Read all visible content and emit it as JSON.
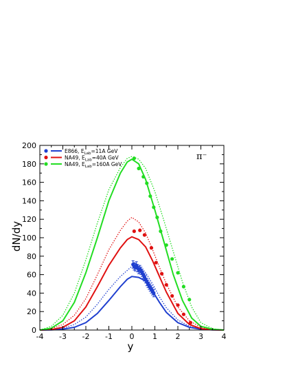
{
  "chart_data": {
    "type": "line",
    "xlabel": "y",
    "ylabel": "dN/dy",
    "annotation": "π⁻",
    "xlim": [
      -4,
      4
    ],
    "ylim": [
      0,
      200
    ],
    "xticks": [
      -4,
      -3,
      -2,
      -1,
      0,
      1,
      2,
      3,
      4
    ],
    "yticks": [
      0,
      20,
      40,
      60,
      80,
      100,
      120,
      140,
      160,
      180,
      200
    ],
    "grid": false,
    "legend_position": "top-left",
    "legend": [
      {
        "label_main": "E866, E",
        "label_sub": "Lab",
        "label_tail": "=11A GeV",
        "color": "#1f3fcf"
      },
      {
        "label_main": "NA49, E",
        "label_sub": "Lab",
        "label_tail": "=40A GeV",
        "color": "#e01010"
      },
      {
        "label_main": "NA49, E",
        "label_sub": "Lab",
        "label_tail": "=160A GeV",
        "color": "#22dd22"
      }
    ],
    "series": [
      {
        "key": "E866-11A",
        "color": "#1f3fcf",
        "solid": {
          "x": [
            -4.0,
            -3.5,
            -3.0,
            -2.5,
            -2.0,
            -1.5,
            -1.0,
            -0.5,
            -0.2,
            0.0,
            0.3,
            0.6,
            0.9,
            1.2,
            1.5,
            2.0,
            2.5,
            3.0,
            3.5,
            4.0
          ],
          "y": [
            0,
            0.2,
            1,
            3,
            8,
            18,
            32,
            47,
            55,
            58,
            57,
            53,
            42,
            30,
            19,
            8,
            3,
            1,
            0.2,
            0
          ]
        },
        "dotted": {
          "x": [
            -4.0,
            -3.5,
            -3.0,
            -2.5,
            -2.0,
            -1.5,
            -1.0,
            -0.5,
            0.0,
            0.3,
            0.6,
            0.9,
            1.2,
            1.5,
            2.0,
            2.5,
            3.0,
            3.5,
            4.0
          ],
          "y": [
            0,
            0.5,
            2,
            6,
            14,
            28,
            44,
            58,
            69,
            68,
            62,
            50,
            36,
            24,
            11,
            4,
            1,
            0.3,
            0
          ]
        },
        "points": {
          "x": [
            0.05,
            0.1,
            0.15,
            0.2,
            0.25,
            0.3,
            0.35,
            0.4,
            0.45,
            0.5,
            0.55,
            0.6,
            0.65,
            0.7,
            0.75,
            0.8,
            0.85,
            0.9,
            0.95
          ],
          "y": [
            71,
            69,
            68,
            70,
            67,
            65,
            66,
            64,
            62,
            60,
            57,
            55,
            52,
            50,
            48,
            46,
            44,
            42,
            40
          ],
          "err": [
            4,
            4,
            4,
            4,
            4,
            4,
            4,
            4,
            4,
            4,
            4,
            4,
            4,
            4,
            4,
            4,
            4,
            4,
            4
          ]
        }
      },
      {
        "key": "NA49-40A",
        "color": "#e01010",
        "solid": {
          "x": [
            -4.0,
            -3.5,
            -3.0,
            -2.5,
            -2.0,
            -1.5,
            -1.0,
            -0.5,
            -0.2,
            0.0,
            0.3,
            0.6,
            0.9,
            1.2,
            1.5,
            2.0,
            2.5,
            3.0,
            3.5,
            4.0
          ],
          "y": [
            0,
            0.5,
            3,
            10,
            25,
            47,
            70,
            89,
            98,
            101,
            98,
            90,
            75,
            58,
            41,
            18,
            6,
            1.5,
            0.3,
            0
          ]
        },
        "dotted": {
          "x": [
            -4.0,
            -3.5,
            -3.0,
            -2.5,
            -2.0,
            -1.5,
            -1.0,
            -0.5,
            -0.2,
            0.0,
            0.3,
            0.6,
            0.9,
            1.2,
            1.5,
            2.0,
            2.5,
            3.0,
            3.5,
            4.0
          ],
          "y": [
            0,
            1.5,
            6,
            16,
            34,
            60,
            87,
            108,
            118,
            122,
            117,
            105,
            87,
            68,
            50,
            25,
            10,
            3,
            0.8,
            0
          ]
        },
        "points": {
          "x": [
            0.1,
            0.35,
            0.55,
            0.85,
            1.05,
            1.3,
            1.5,
            1.75,
            2.0,
            2.25,
            2.55
          ],
          "y": [
            107,
            108,
            103,
            89,
            73,
            61,
            49,
            37,
            27,
            17,
            8
          ]
        }
      },
      {
        "key": "NA49-160A",
        "color": "#22dd22",
        "solid": {
          "x": [
            -4.0,
            -3.5,
            -3.0,
            -2.5,
            -2.0,
            -1.5,
            -1.0,
            -0.5,
            -0.2,
            0.0,
            0.3,
            0.6,
            1.0,
            1.4,
            1.8,
            2.2,
            2.6,
            3.0,
            3.5,
            4.0
          ],
          "y": [
            0,
            2,
            10,
            30,
            62,
            100,
            140,
            170,
            182,
            185,
            180,
            163,
            130,
            95,
            60,
            32,
            13,
            4,
            0.8,
            0
          ]
        },
        "dotted": {
          "x": [
            -4.0,
            -3.5,
            -3.0,
            -2.5,
            -2.0,
            -1.5,
            -1.0,
            -0.5,
            -0.2,
            0.0,
            0.3,
            0.6,
            1.0,
            1.4,
            1.8,
            2.2,
            2.6,
            3.0,
            3.5,
            4.0
          ],
          "y": [
            0,
            4,
            16,
            40,
            76,
            116,
            152,
            176,
            186,
            188,
            185,
            175,
            150,
            118,
            85,
            52,
            25,
            8,
            1.5,
            0
          ]
        },
        "points": {
          "x": [
            0.1,
            0.3,
            0.5,
            0.65,
            0.8,
            0.95,
            1.1,
            1.25,
            1.5,
            1.75,
            2.0,
            2.25,
            2.5
          ],
          "y": [
            186,
            175,
            166,
            159,
            145,
            133,
            122,
            107,
            92,
            77,
            62,
            47,
            33
          ]
        }
      }
    ]
  }
}
